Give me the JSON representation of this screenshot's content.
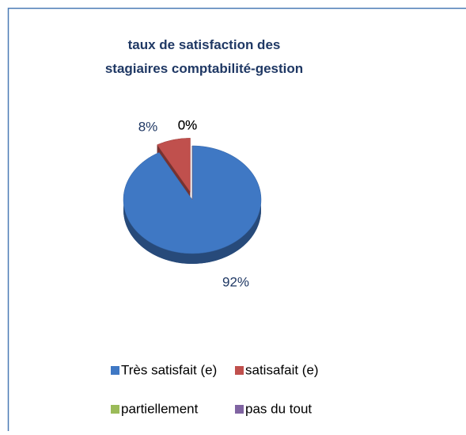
{
  "chart_data": {
    "type": "pie",
    "title": "taux de satisfaction des stagiaires comptabilité-gestion",
    "categories": [
      "Très satisfait (e)",
      "satisafait (e)",
      "partiellement",
      "pas du tout"
    ],
    "values": [
      92,
      8,
      0,
      0
    ],
    "value_labels": [
      "92%",
      "8%",
      "0%",
      "0%"
    ],
    "colors": [
      "#3f78c4",
      "#c0504d",
      "#9bbb59",
      "#8064a2"
    ],
    "legend": "bottom"
  }
}
